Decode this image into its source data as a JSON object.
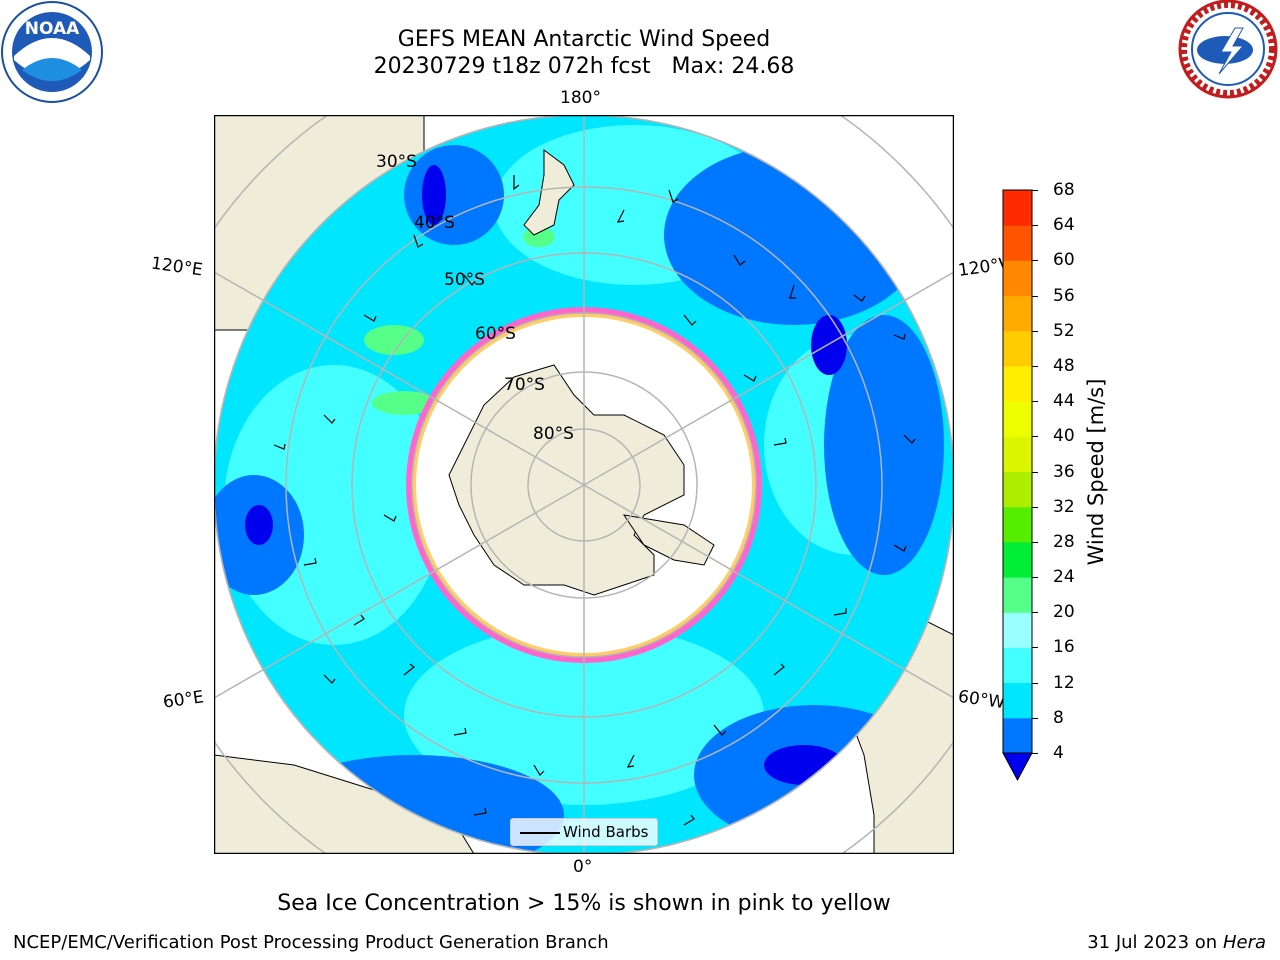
{
  "title": {
    "line1": "GEFS MEAN Antarctic Wind Speed",
    "line2": "20230729 t18z 072h fcst   Max: 24.68"
  },
  "map": {
    "projection": "south-polar-stereographic",
    "longitude_labels": [
      "180°",
      "120°E",
      "120°W",
      "60°E",
      "60°W",
      "0°"
    ],
    "latitude_labels": [
      "30°S",
      "40°S",
      "50°S",
      "60°S",
      "70°S",
      "80°S"
    ],
    "ocean_color": "#33ffff",
    "land_color": "#efedd9",
    "sea_ice_note": "Sea Ice Concentration > 15% is shown in pink to yellow"
  },
  "legend": {
    "label": "Wind Barbs"
  },
  "colorbar": {
    "label": "Wind Speed [m/s]",
    "ticks": [
      "4",
      "8",
      "12",
      "16",
      "20",
      "24",
      "28",
      "32",
      "36",
      "40",
      "44",
      "48",
      "52",
      "56",
      "60",
      "64",
      "68"
    ],
    "colors": [
      "#0077ff",
      "#00e6ff",
      "#44ffff",
      "#99ffff",
      "#55ff88",
      "#00ee33",
      "#55ee00",
      "#b0ee00",
      "#dcf500",
      "#eeff00",
      "#ffee00",
      "#ffcc00",
      "#ffaa00",
      "#ff8800",
      "#ff5500",
      "#ff2a00"
    ],
    "extend_color": "#0000ee"
  },
  "logos": {
    "left": "NOAA",
    "right": "NATIONAL WEATHER SERVICE"
  },
  "footer": {
    "left": "NCEP/EMC/Verification Post Processing Product Generation Branch",
    "date": "31 Jul 2023 on",
    "host": "Hera"
  }
}
